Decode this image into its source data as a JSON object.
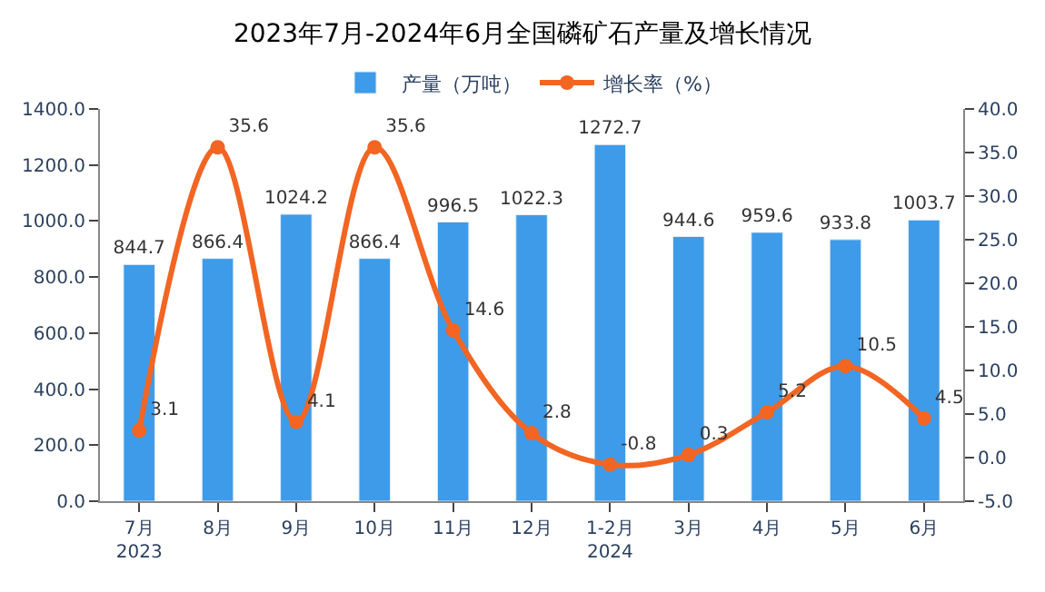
{
  "chart_data": {
    "type": "bar",
    "title": "2023年7月-2024年6月全国磷矿石产量及增长情况",
    "categories": [
      "7月\n2023",
      "8月",
      "9月",
      "10月",
      "11月",
      "12月",
      "1-2月\n2024",
      "3月",
      "4月",
      "5月",
      "6月"
    ],
    "series": [
      {
        "name": "产量（万吨）",
        "color": "#3d9be9",
        "values": [
          844.7,
          866.4,
          1024.2,
          866.4,
          996.5,
          1022.3,
          1272.7,
          944.6,
          959.6,
          933.8,
          1003.7
        ]
      },
      {
        "name": "增长率（%）",
        "type": "line",
        "axis": "y2",
        "color": "#f26522",
        "marker": "circle",
        "values": [
          3.1,
          35.6,
          4.1,
          35.6,
          14.6,
          2.8,
          -0.8,
          0.3,
          5.2,
          10.5,
          4.5
        ]
      }
    ],
    "ylim": [
      0,
      1400
    ],
    "yticks": [
      {
        "value": 0,
        "label": "0.0"
      },
      {
        "value": 200,
        "label": "200.0"
      },
      {
        "value": 400,
        "label": "400.0"
      },
      {
        "value": 600,
        "label": "600.0"
      },
      {
        "value": 800,
        "label": "800.0"
      },
      {
        "value": 1000,
        "label": "1000.0"
      },
      {
        "value": 1200,
        "label": "1200.0"
      },
      {
        "value": 1400,
        "label": "1400.0"
      }
    ],
    "y2lim": [
      -5,
      40
    ],
    "y2ticks": [
      {
        "value": -5,
        "label": "-5.0"
      },
      {
        "value": 0,
        "label": "0.0"
      },
      {
        "value": 5,
        "label": "5.0"
      },
      {
        "value": 10,
        "label": "10.0"
      },
      {
        "value": 15,
        "label": "15.0"
      },
      {
        "value": 20,
        "label": "20.0"
      },
      {
        "value": 25,
        "label": "25.0"
      },
      {
        "value": 30,
        "label": "30.0"
      },
      {
        "value": 35,
        "label": "35.0"
      },
      {
        "value": 40,
        "label": "40.0"
      }
    ],
    "data_labels": true,
    "legend": "top"
  }
}
